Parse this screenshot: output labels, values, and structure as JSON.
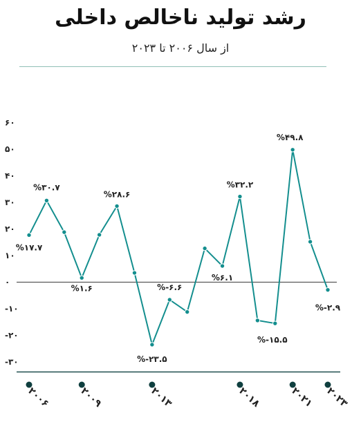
{
  "chart_data": {
    "type": "line",
    "title": "رشد تولید ناخالص داخلی",
    "subtitle": "از سال ۲۰۰۶ تا ۲۰۲۳",
    "x": [
      2006,
      2007,
      2008,
      2009,
      2010,
      2011,
      2012,
      2013,
      2014,
      2015,
      2016,
      2017,
      2018,
      2019,
      2020,
      2021,
      2022,
      2023
    ],
    "values": [
      17.7,
      30.7,
      18.8,
      1.6,
      17.8,
      28.6,
      3.5,
      -23.5,
      -6.6,
      -11.2,
      12.7,
      6.1,
      32.2,
      -14.4,
      -15.5,
      49.8,
      15.2,
      -2.9
    ],
    "data_labels": [
      {
        "i": 0,
        "text": "%۱۷.۷"
      },
      {
        "i": 1,
        "text": "%۳۰.۷"
      },
      {
        "i": 3,
        "text": "%۱.۶"
      },
      {
        "i": 5,
        "text": "%۲۸.۶"
      },
      {
        "i": 7,
        "text": "%-۲۳.۵"
      },
      {
        "i": 8,
        "text": "%-۶.۶"
      },
      {
        "i": 11,
        "text": "%۶.۱"
      },
      {
        "i": 12,
        "text": "%۳۲.۲"
      },
      {
        "i": 14,
        "text": "%-۱۵.۵"
      },
      {
        "i": 15,
        "text": "%۴۹.۸"
      },
      {
        "i": 17,
        "text": "%-۲.۹"
      }
    ],
    "y_ticks": [
      {
        "value": 60,
        "label": "۶۰"
      },
      {
        "value": 50,
        "label": "۵۰"
      },
      {
        "value": 40,
        "label": "۴۰"
      },
      {
        "value": 30,
        "label": "۳۰"
      },
      {
        "value": 20,
        "label": "۲۰"
      },
      {
        "value": 10,
        "label": "۱۰"
      },
      {
        "value": 0,
        "label": "۰"
      },
      {
        "value": -10,
        "label": "-۱۰"
      },
      {
        "value": -20,
        "label": "-۲۰"
      },
      {
        "value": -30,
        "label": "-۳۰"
      }
    ],
    "x_ticks": [
      {
        "x": 2006,
        "label": "۲۰۰۶"
      },
      {
        "x": 2009,
        "label": "۲۰۰۹"
      },
      {
        "x": 2013,
        "label": "۲۰۱۳"
      },
      {
        "x": 2018,
        "label": "۲۰۱۸"
      },
      {
        "x": 2021,
        "label": "۲۰۲۱"
      },
      {
        "x": 2023,
        "label": "۲۰۲۳"
      }
    ],
    "ylim": [
      -30,
      60
    ],
    "colors": {
      "line": "#138e8e",
      "marker": "#138e8e",
      "marker_stroke": "#ffffff",
      "zero_line": "#3a3a3a",
      "axis_line": "#1f4e4e",
      "x_dot": "#0f3f3f"
    }
  }
}
